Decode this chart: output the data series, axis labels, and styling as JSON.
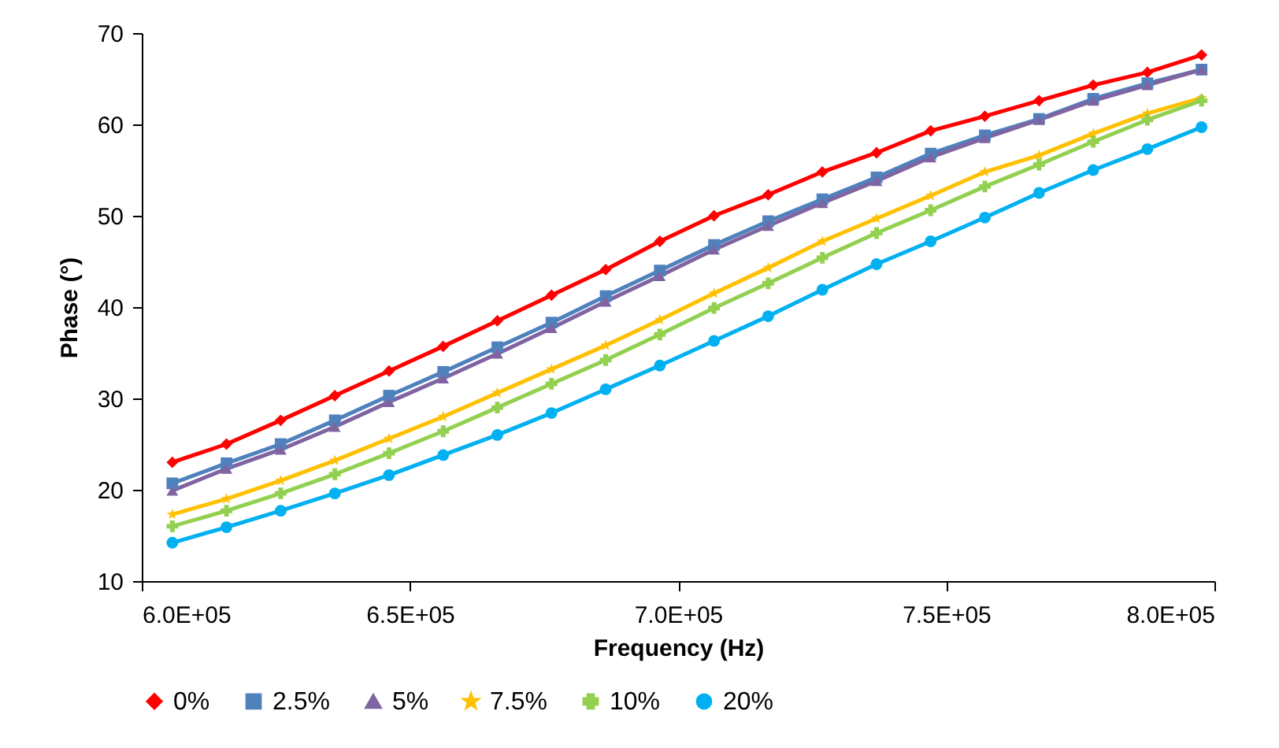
{
  "chart_data": {
    "type": "line",
    "xlabel": "Frequency (Hz)",
    "ylabel": "Phase (°)",
    "x": [
      605700,
      615800,
      625900,
      636000,
      646100,
      656200,
      666300,
      676400,
      686500,
      696600,
      706700,
      716800,
      726900,
      737000,
      747100,
      757200,
      767300,
      777400,
      787500,
      797600
    ],
    "xlim": [
      600000,
      800000
    ],
    "xticks": [
      {
        "value": 600000,
        "label": "6.0E+05"
      },
      {
        "value": 650000,
        "label": "6.5E+05"
      },
      {
        "value": 700000,
        "label": "7.0E+05"
      },
      {
        "value": 750000,
        "label": "7.5E+05"
      },
      {
        "value": 800000,
        "label": "8.0E+05"
      }
    ],
    "ylim": [
      10,
      70
    ],
    "yticks": [
      10,
      20,
      30,
      40,
      50,
      60,
      70
    ],
    "grid": false,
    "legend": "bottom",
    "line_style": "solid",
    "series": [
      {
        "name": "0%",
        "color": "#ff0000",
        "marker": "diamond",
        "values": [
          23,
          25,
          27.6,
          30.3,
          33,
          35.7,
          38.5,
          41.3,
          44.1,
          47.2,
          50,
          52.3,
          54.8,
          56.9,
          59.3,
          60.9,
          62.6,
          64.3,
          65.7,
          67.6
        ]
      },
      {
        "name": "2.5%",
        "color": "#4f81bd",
        "marker": "square",
        "values": [
          20.7,
          22.9,
          25,
          27.6,
          30.3,
          32.9,
          35.6,
          38.3,
          41.2,
          44,
          46.8,
          49.4,
          51.8,
          54.2,
          56.8,
          58.8,
          60.6,
          62.8,
          64.5,
          66
        ]
      },
      {
        "name": "5%",
        "color": "#8064a2",
        "marker": "triangle",
        "values": [
          19.9,
          22.3,
          24.4,
          26.9,
          29.6,
          32.2,
          34.9,
          37.7,
          40.6,
          43.4,
          46.3,
          48.9,
          51.4,
          53.8,
          56.4,
          58.5,
          60.5,
          62.6,
          64.3,
          66
        ]
      },
      {
        "name": "7.5%",
        "color": "#ffc000",
        "marker": "star",
        "values": [
          17.3,
          19,
          21,
          23.2,
          25.6,
          28,
          30.6,
          33.2,
          35.8,
          38.6,
          41.5,
          44.3,
          47.2,
          49.7,
          52.2,
          54.8,
          56.6,
          59,
          61.2,
          62.9
        ]
      },
      {
        "name": "10%",
        "color": "#92d050",
        "marker": "cross",
        "values": [
          16,
          17.7,
          19.6,
          21.7,
          24,
          26.4,
          29,
          31.6,
          34.2,
          37,
          39.9,
          42.6,
          45.4,
          48.1,
          50.6,
          53.2,
          55.6,
          58.1,
          60.5,
          62.6
        ]
      },
      {
        "name": "20%",
        "color": "#00b0f0",
        "marker": "circle",
        "values": [
          14.2,
          15.9,
          17.7,
          19.6,
          21.6,
          23.8,
          26,
          28.4,
          31,
          33.6,
          36.3,
          39,
          41.9,
          44.7,
          47.2,
          49.8,
          52.5,
          55,
          57.3,
          59.7
        ]
      }
    ]
  }
}
